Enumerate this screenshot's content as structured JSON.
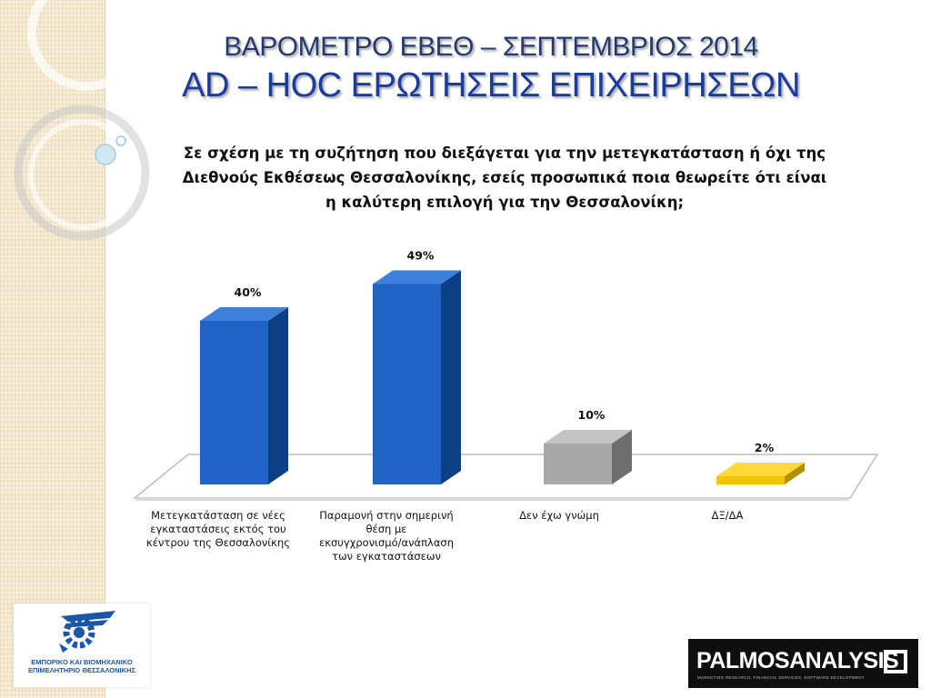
{
  "title": {
    "line1": "ΒΑΡΟΜΕΤΡΟ ΕΒΕΘ – ΣΕΠΤΕΜΒΡΙΟΣ 2014",
    "line2": "AD – HOC ΕΡΩΤΗΣΕΙΣ ΕΠΙΧΕΙΡΗΣΕΩΝ"
  },
  "question": {
    "lines": [
      "Σε σχέση με τη συζήτηση που διεξάγεται για την μετεγκατάσταση ή όχι της",
      "Διεθνούς Εκθέσεως Θεσσαλονίκης, εσείς προσωπικά ποια θεωρείτε ότι είναι",
      "η καλύτερη επιλογή για την Θεσσαλονίκη;"
    ]
  },
  "chart_data": {
    "type": "bar",
    "categories": [
      [
        "Μετεγκατάσταση σε νέες",
        "εγκαταστάσεις εκτός του",
        "κέντρου της Θεσσαλονίκης"
      ],
      [
        "Παραμονή στην σημερινή",
        "θέση με",
        "εκσυγχρονισμό/ανάπλαση",
        "των εγκαταστάσεων"
      ],
      [
        "Δεν έχω γνώμη"
      ],
      [
        "ΔΞ/ΔΑ"
      ]
    ],
    "values": [
      40,
      49,
      10,
      2
    ],
    "data_labels": [
      "40%",
      "49%",
      "10%",
      "2%"
    ],
    "unit": "%",
    "colors": [
      "#1f63c7",
      "#1f63c7",
      "#a9a9a9",
      "#f2c300"
    ],
    "side_colors": [
      "#0d3f86",
      "#0d3f86",
      "#6e6e6e",
      "#b38f00"
    ],
    "top_colors": [
      "#3c7fdc",
      "#3c7fdc",
      "#c4c4c4",
      "#ffd83a"
    ],
    "ylim": [
      0,
      100
    ],
    "grid": false,
    "legend": "none",
    "style": "3d-column"
  },
  "logos": {
    "left_org": [
      "ΕΜΠΟΡΙΚΟ ΚΑΙ ΒΙΟΜΗΧΑΝΙΚΟ",
      "ΕΠΙΜΕΛΗΤΗΡΙΟ ΘΕΣΣΑΛΟΝΙΚΗΣ"
    ],
    "right_brand": "PALMOSANALYSIS",
    "right_tagline": "MARKETING RESEARCH, FINANCIAL SERVICES, SOFTWARE DEVELOPMENT"
  }
}
